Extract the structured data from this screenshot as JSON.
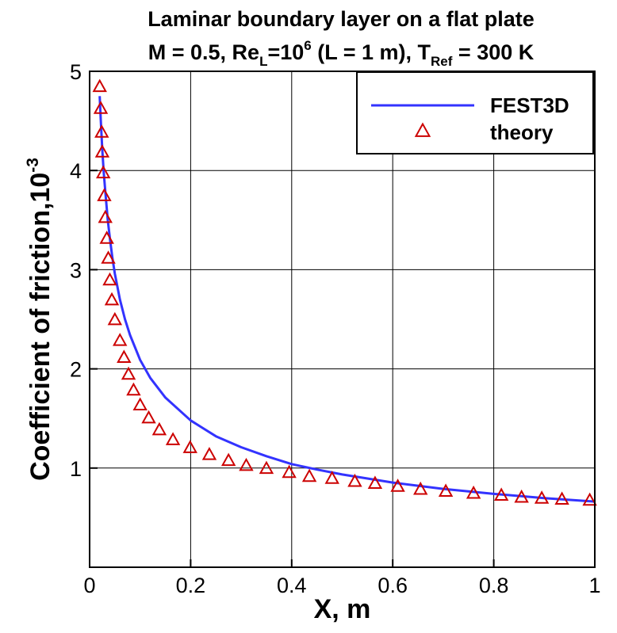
{
  "chart_data": {
    "type": "line",
    "title_line1": "Laminar boundary layer on a flat plate",
    "title_line2": {
      "m": "M = 0.5, Re",
      "l_sub": "L",
      "eq10": "=10",
      "exp6": "6",
      "lpart": " (L = 1 m), T",
      "ref_sub": "Ref",
      "tpart": " = 300 K"
    },
    "xlabel": "X, m",
    "ylabel": "Coefficient of friction,10",
    "ylabel_exp": "-3",
    "xlim": [
      0,
      1
    ],
    "ylim": [
      0,
      5
    ],
    "xticks": [
      "0",
      "0.2",
      "0.4",
      "0.6",
      "0.8",
      "1"
    ],
    "yticks": [
      "1",
      "2",
      "3",
      "4",
      "5"
    ],
    "grid": true,
    "legend_position": "top-right",
    "series": [
      {
        "name": "FEST3D",
        "kind": "line",
        "color": "#3333ff",
        "x": [
          0.02,
          0.022,
          0.025,
          0.028,
          0.032,
          0.036,
          0.04,
          0.045,
          0.05,
          0.06,
          0.07,
          0.08,
          0.1,
          0.12,
          0.15,
          0.2,
          0.25,
          0.3,
          0.35,
          0.4,
          0.45,
          0.5,
          0.6,
          0.7,
          0.8,
          0.9,
          1.0
        ],
        "y": [
          4.75,
          4.52,
          4.22,
          3.98,
          3.73,
          3.5,
          3.32,
          3.12,
          2.96,
          2.7,
          2.5,
          2.34,
          2.09,
          1.91,
          1.71,
          1.48,
          1.32,
          1.21,
          1.12,
          1.04,
          0.985,
          0.935,
          0.854,
          0.79,
          0.74,
          0.697,
          0.662
        ]
      },
      {
        "name": "theory",
        "kind": "markers",
        "color": "#cc0000",
        "x": [
          0.02,
          0.022,
          0.024,
          0.025,
          0.027,
          0.029,
          0.031,
          0.034,
          0.037,
          0.04,
          0.044,
          0.05,
          0.06,
          0.068,
          0.077,
          0.087,
          0.1,
          0.117,
          0.138,
          0.165,
          0.199,
          0.237,
          0.275,
          0.31,
          0.35,
          0.395,
          0.435,
          0.48,
          0.525,
          0.565,
          0.61,
          0.655,
          0.705,
          0.76,
          0.815,
          0.855,
          0.895,
          0.935,
          0.99
        ],
        "y": [
          4.84,
          4.62,
          4.38,
          4.18,
          3.97,
          3.74,
          3.52,
          3.31,
          3.11,
          2.89,
          2.69,
          2.49,
          2.28,
          2.11,
          1.94,
          1.78,
          1.63,
          1.5,
          1.38,
          1.28,
          1.2,
          1.13,
          1.07,
          1.02,
          0.99,
          0.95,
          0.91,
          0.89,
          0.86,
          0.84,
          0.81,
          0.78,
          0.76,
          0.74,
          0.72,
          0.7,
          0.69,
          0.68,
          0.67
        ]
      }
    ]
  }
}
